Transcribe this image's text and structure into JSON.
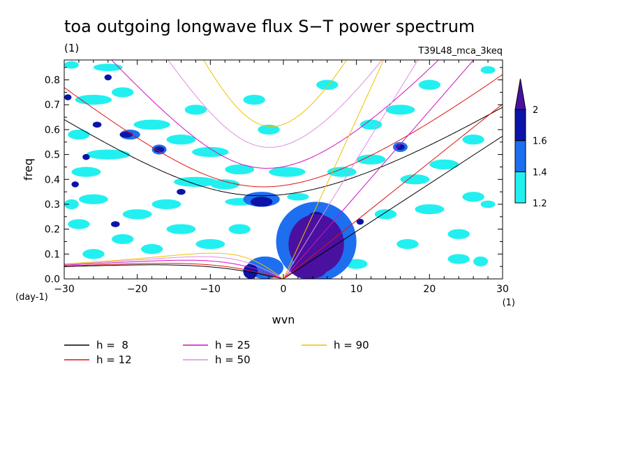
{
  "chart_data": {
    "type": "heatmap",
    "title": "toa outgoing longwave flux S−T power spectrum",
    "subtitle_left": "(1)",
    "subtitle_right": "T39L48_mca_3keq",
    "xlabel": "wvn",
    "ylabel": "freq",
    "x_unit": "(1)",
    "y_unit": "(day-1)",
    "xlim": [
      -30,
      30
    ],
    "ylim": [
      0,
      0.88
    ],
    "x_ticks": [
      -30,
      -20,
      -10,
      0,
      10,
      20,
      30
    ],
    "x_tick_labels": [
      "−30",
      "−20",
      "−10",
      "0",
      "10",
      "20",
      "30"
    ],
    "y_ticks": [
      0,
      0.1,
      0.2,
      0.3,
      0.4,
      0.5,
      0.6,
      0.7,
      0.8
    ],
    "y_tick_labels": [
      "0.0",
      "0.1",
      "0.2",
      "0.3",
      "0.4",
      "0.5",
      "0.6",
      "0.7",
      "0.8"
    ],
    "colorbar": {
      "levels": [
        1.2,
        1.4,
        1.6,
        2
      ],
      "level_labels": [
        "1.2",
        "1.4",
        "1.6",
        "2"
      ],
      "colors": [
        "#22f0f0",
        "#1e6ef0",
        "#0b14a8",
        "#4a10a0"
      ]
    },
    "series": [
      {
        "name": "h =  8",
        "value": 8,
        "color": "#000000"
      },
      {
        "name": "h = 12",
        "value": 12,
        "color": "#e01010"
      },
      {
        "name": "h = 25",
        "value": 25,
        "color": "#d010c0"
      },
      {
        "name": "h = 50",
        "value": 50,
        "color": "#e08ce0"
      },
      {
        "name": "h = 90",
        "value": 90,
        "color": "#f0c000"
      }
    ],
    "power_regions": [
      {
        "x": 4.5,
        "y": 0.14,
        "rx": 3.8,
        "ry": 0.12,
        "level": 3
      },
      {
        "x": 3.5,
        "y": 0.04,
        "rx": 2.5,
        "ry": 0.04,
        "level": 3
      },
      {
        "x": 6.0,
        "y": 0.12,
        "rx": 1.5,
        "ry": 0.04,
        "level": 3
      },
      {
        "x": 4.5,
        "y": 0.22,
        "rx": 1.5,
        "ry": 0.05,
        "level": 2
      },
      {
        "x": -3.0,
        "y": 0.31,
        "rx": 1.5,
        "ry": 0.02,
        "level": 2
      },
      {
        "x": -4.5,
        "y": 0.03,
        "rx": 1.0,
        "ry": 0.03,
        "level": 2
      },
      {
        "x": -21.5,
        "y": 0.58,
        "rx": 0.9,
        "ry": 0.012,
        "level": 2
      },
      {
        "x": -17.0,
        "y": 0.52,
        "rx": 0.7,
        "ry": 0.012,
        "level": 2
      },
      {
        "x": -25.5,
        "y": 0.62,
        "rx": 0.6,
        "ry": 0.012,
        "level": 2
      },
      {
        "x": -23.0,
        "y": 0.22,
        "rx": 0.6,
        "ry": 0.012,
        "level": 2
      },
      {
        "x": -14.0,
        "y": 0.35,
        "rx": 0.6,
        "ry": 0.012,
        "level": 2
      },
      {
        "x": -27.0,
        "y": 0.49,
        "rx": 0.5,
        "ry": 0.012,
        "level": 2
      },
      {
        "x": -29.5,
        "y": 0.73,
        "rx": 0.5,
        "ry": 0.012,
        "level": 2
      },
      {
        "x": -28.5,
        "y": 0.38,
        "rx": 0.5,
        "ry": 0.012,
        "level": 2
      },
      {
        "x": -24.0,
        "y": 0.81,
        "rx": 0.5,
        "ry": 0.012,
        "level": 2
      },
      {
        "x": 16.0,
        "y": 0.53,
        "rx": 0.6,
        "ry": 0.012,
        "level": 2
      },
      {
        "x": 10.5,
        "y": 0.23,
        "rx": 0.5,
        "ry": 0.012,
        "level": 2
      },
      {
        "x": 4.5,
        "y": 0.15,
        "rx": 5.5,
        "ry": 0.16,
        "level": 1
      },
      {
        "x": -3.0,
        "y": 0.32,
        "rx": 2.5,
        "ry": 0.03,
        "level": 1
      },
      {
        "x": -2.5,
        "y": 0.045,
        "rx": 2.5,
        "ry": 0.045,
        "level": 1
      },
      {
        "x": -21.0,
        "y": 0.58,
        "rx": 1.4,
        "ry": 0.02,
        "level": 1
      },
      {
        "x": -17.0,
        "y": 0.52,
        "rx": 1.0,
        "ry": 0.02,
        "level": 1
      },
      {
        "x": 16.0,
        "y": 0.53,
        "rx": 1.0,
        "ry": 0.02,
        "level": 1
      },
      {
        "x": 0.5,
        "y": 0.43,
        "rx": 2.5,
        "ry": 0.02,
        "level": 0
      },
      {
        "x": -12.0,
        "y": 0.39,
        "rx": 3.0,
        "ry": 0.02,
        "level": 0
      },
      {
        "x": -24.0,
        "y": 0.5,
        "rx": 3.0,
        "ry": 0.02,
        "level": 0
      },
      {
        "x": -10.0,
        "y": 0.51,
        "rx": 2.5,
        "ry": 0.02,
        "level": 0
      },
      {
        "x": -18.0,
        "y": 0.62,
        "rx": 2.5,
        "ry": 0.02,
        "level": 0
      },
      {
        "x": -26.0,
        "y": 0.72,
        "rx": 2.5,
        "ry": 0.02,
        "level": 0
      },
      {
        "x": -22.0,
        "y": 0.75,
        "rx": 1.5,
        "ry": 0.02,
        "level": 0
      },
      {
        "x": -14.0,
        "y": 0.56,
        "rx": 2.0,
        "ry": 0.02,
        "level": 0
      },
      {
        "x": -6.0,
        "y": 0.44,
        "rx": 2.0,
        "ry": 0.02,
        "level": 0
      },
      {
        "x": -8.0,
        "y": 0.38,
        "rx": 2.0,
        "ry": 0.02,
        "level": 0
      },
      {
        "x": -16.0,
        "y": 0.3,
        "rx": 2.0,
        "ry": 0.02,
        "level": 0
      },
      {
        "x": -20.0,
        "y": 0.26,
        "rx": 2.0,
        "ry": 0.02,
        "level": 0
      },
      {
        "x": -26.0,
        "y": 0.32,
        "rx": 2.0,
        "ry": 0.02,
        "level": 0
      },
      {
        "x": -28.0,
        "y": 0.22,
        "rx": 1.5,
        "ry": 0.02,
        "level": 0
      },
      {
        "x": -22.0,
        "y": 0.16,
        "rx": 1.5,
        "ry": 0.02,
        "level": 0
      },
      {
        "x": -14.0,
        "y": 0.2,
        "rx": 2.0,
        "ry": 0.02,
        "level": 0
      },
      {
        "x": -10.0,
        "y": 0.14,
        "rx": 2.0,
        "ry": 0.02,
        "level": 0
      },
      {
        "x": -18.0,
        "y": 0.12,
        "rx": 1.5,
        "ry": 0.02,
        "level": 0
      },
      {
        "x": -26.0,
        "y": 0.1,
        "rx": 1.5,
        "ry": 0.02,
        "level": 0
      },
      {
        "x": -6.0,
        "y": 0.2,
        "rx": 1.5,
        "ry": 0.02,
        "level": 0
      },
      {
        "x": 8.0,
        "y": 0.43,
        "rx": 2.0,
        "ry": 0.02,
        "level": 0
      },
      {
        "x": 12.0,
        "y": 0.48,
        "rx": 2.0,
        "ry": 0.02,
        "level": 0
      },
      {
        "x": 18.0,
        "y": 0.4,
        "rx": 2.0,
        "ry": 0.02,
        "level": 0
      },
      {
        "x": 22.0,
        "y": 0.46,
        "rx": 2.0,
        "ry": 0.02,
        "level": 0
      },
      {
        "x": 26.0,
        "y": 0.33,
        "rx": 1.5,
        "ry": 0.02,
        "level": 0
      },
      {
        "x": 20.0,
        "y": 0.28,
        "rx": 2.0,
        "ry": 0.02,
        "level": 0
      },
      {
        "x": 14.0,
        "y": 0.26,
        "rx": 1.5,
        "ry": 0.02,
        "level": 0
      },
      {
        "x": 16.0,
        "y": 0.68,
        "rx": 2.0,
        "ry": 0.02,
        "level": 0
      },
      {
        "x": 20.0,
        "y": 0.78,
        "rx": 1.5,
        "ry": 0.02,
        "level": 0
      },
      {
        "x": 12.0,
        "y": 0.62,
        "rx": 1.5,
        "ry": 0.02,
        "level": 0
      },
      {
        "x": 26.0,
        "y": 0.56,
        "rx": 1.5,
        "ry": 0.02,
        "level": 0
      },
      {
        "x": 24.0,
        "y": 0.18,
        "rx": 1.5,
        "ry": 0.02,
        "level": 0
      },
      {
        "x": 17.0,
        "y": 0.14,
        "rx": 1.5,
        "ry": 0.02,
        "level": 0
      },
      {
        "x": 24.0,
        "y": 0.08,
        "rx": 1.5,
        "ry": 0.02,
        "level": 0
      },
      {
        "x": 27.0,
        "y": 0.07,
        "rx": 1.0,
        "ry": 0.02,
        "level": 0
      },
      {
        "x": 10.0,
        "y": 0.06,
        "rx": 1.5,
        "ry": 0.02,
        "level": 0
      },
      {
        "x": -2.0,
        "y": 0.6,
        "rx": 1.5,
        "ry": 0.02,
        "level": 0
      },
      {
        "x": -4.0,
        "y": 0.72,
        "rx": 1.5,
        "ry": 0.02,
        "level": 0
      },
      {
        "x": 6.0,
        "y": 0.78,
        "rx": 1.5,
        "ry": 0.02,
        "level": 0
      },
      {
        "x": -12.0,
        "y": 0.68,
        "rx": 1.5,
        "ry": 0.02,
        "level": 0
      },
      {
        "x": -28.0,
        "y": 0.58,
        "rx": 1.5,
        "ry": 0.02,
        "level": 0
      },
      {
        "x": -27.0,
        "y": 0.43,
        "rx": 2.0,
        "ry": 0.02,
        "level": 0
      },
      {
        "x": -29.0,
        "y": 0.3,
        "rx": 1.0,
        "ry": 0.02,
        "level": 0
      },
      {
        "x": -24.0,
        "y": 0.85,
        "rx": 2.0,
        "ry": 0.015,
        "level": 0
      },
      {
        "x": -29.0,
        "y": 0.86,
        "rx": 1.0,
        "ry": 0.015,
        "level": 0
      },
      {
        "x": -6.0,
        "y": 0.31,
        "rx": 2.0,
        "ry": 0.015,
        "level": 0
      },
      {
        "x": 2.0,
        "y": 0.33,
        "rx": 1.5,
        "ry": 0.015,
        "level": 0
      },
      {
        "x": 28.0,
        "y": 0.84,
        "rx": 1.0,
        "ry": 0.015,
        "level": 0
      },
      {
        "x": 28.0,
        "y": 0.3,
        "rx": 1.0,
        "ry": 0.015,
        "level": 0
      }
    ]
  }
}
